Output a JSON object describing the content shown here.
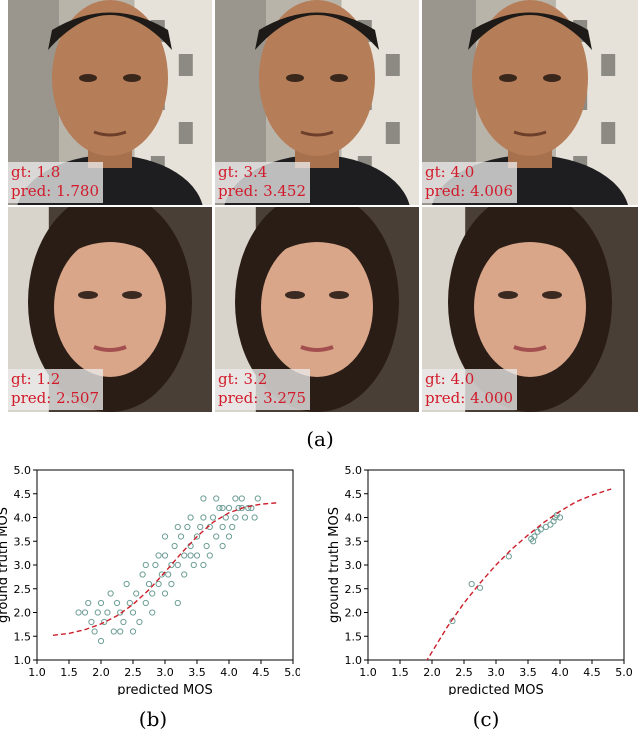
{
  "panel_a": {
    "caption": "(a)",
    "tiles": [
      {
        "gt": "gt: 1.8",
        "pred": "pred: 1.780",
        "subject": "man"
      },
      {
        "gt": "gt: 3.4",
        "pred": "pred: 3.452",
        "subject": "man"
      },
      {
        "gt": "gt: 4.0",
        "pred": "pred: 4.006",
        "subject": "man"
      },
      {
        "gt": "gt: 1.2",
        "pred": "pred: 2.507",
        "subject": "woman"
      },
      {
        "gt": "gt: 3.2",
        "pred": "pred: 3.275",
        "subject": "woman"
      },
      {
        "gt": "gt: 4.0",
        "pred": "pred: 4.000",
        "subject": "woman"
      }
    ]
  },
  "captions": {
    "b": "(b)",
    "c": "(c)"
  },
  "colors": {
    "points": "#6e9e96",
    "fit": "#cc1f2b",
    "label": "#d21a2a"
  },
  "chart_data": [
    {
      "type": "scatter",
      "xlabel": "predicted MOS",
      "ylabel": "ground truth MOS",
      "xlim": [
        1.0,
        5.0
      ],
      "ylim": [
        1.0,
        5.0
      ],
      "xticks": [
        "1.0",
        "1.5",
        "2.0",
        "2.5",
        "3.0",
        "3.5",
        "4.0",
        "4.5",
        "5.0"
      ],
      "yticks": [
        "1.0",
        "1.5",
        "2.0",
        "2.5",
        "3.0",
        "3.5",
        "4.0",
        "4.5",
        "5.0"
      ],
      "grid": false,
      "points": [
        [
          1.65,
          2.0
        ],
        [
          1.75,
          2.0
        ],
        [
          1.8,
          2.2
        ],
        [
          1.85,
          1.8
        ],
        [
          1.9,
          1.6
        ],
        [
          1.95,
          2.0
        ],
        [
          2.0,
          2.2
        ],
        [
          2.05,
          1.8
        ],
        [
          2.1,
          2.0
        ],
        [
          2.15,
          2.4
        ],
        [
          2.2,
          1.6
        ],
        [
          2.25,
          2.2
        ],
        [
          2.3,
          2.0
        ],
        [
          2.35,
          1.8
        ],
        [
          2.4,
          2.6
        ],
        [
          2.45,
          2.2
        ],
        [
          2.5,
          2.0
        ],
        [
          2.55,
          2.4
        ],
        [
          2.6,
          1.8
        ],
        [
          2.65,
          2.8
        ],
        [
          2.7,
          2.2
        ],
        [
          2.75,
          2.6
        ],
        [
          2.8,
          2.4
        ],
        [
          2.85,
          3.0
        ],
        [
          2.9,
          2.6
        ],
        [
          2.95,
          2.8
        ],
        [
          3.0,
          3.2
        ],
        [
          3.05,
          2.8
        ],
        [
          3.1,
          3.0
        ],
        [
          3.15,
          3.4
        ],
        [
          3.2,
          3.0
        ],
        [
          3.25,
          3.6
        ],
        [
          3.3,
          3.2
        ],
        [
          3.35,
          3.8
        ],
        [
          3.4,
          3.4
        ],
        [
          3.45,
          3.0
        ],
        [
          3.5,
          3.6
        ],
        [
          3.55,
          3.8
        ],
        [
          3.6,
          4.0
        ],
        [
          3.65,
          3.4
        ],
        [
          3.7,
          3.8
        ],
        [
          3.75,
          4.0
        ],
        [
          3.8,
          3.6
        ],
        [
          3.85,
          4.2
        ],
        [
          3.9,
          3.8
        ],
        [
          3.95,
          4.0
        ],
        [
          4.0,
          4.2
        ],
        [
          4.05,
          3.8
        ],
        [
          4.1,
          4.0
        ],
        [
          4.15,
          4.2
        ],
        [
          4.2,
          4.4
        ],
        [
          4.25,
          4.0
        ],
        [
          4.3,
          4.2
        ],
        [
          4.35,
          4.2
        ],
        [
          4.4,
          4.0
        ],
        [
          4.45,
          4.4
        ],
        [
          3.6,
          4.4
        ],
        [
          3.2,
          3.8
        ],
        [
          2.9,
          3.2
        ],
        [
          3.0,
          2.4
        ],
        [
          3.3,
          2.8
        ],
        [
          3.5,
          3.2
        ],
        [
          3.7,
          3.2
        ],
        [
          3.9,
          3.4
        ],
        [
          4.0,
          3.6
        ],
        [
          3.1,
          2.6
        ],
        [
          2.7,
          3.0
        ],
        [
          3.4,
          4.0
        ],
        [
          3.8,
          4.4
        ],
        [
          4.1,
          4.4
        ],
        [
          2.5,
          1.6
        ],
        [
          2.8,
          2.0
        ],
        [
          3.2,
          2.2
        ],
        [
          2.0,
          1.4
        ],
        [
          2.3,
          1.6
        ],
        [
          3.0,
          3.6
        ],
        [
          3.4,
          3.2
        ],
        [
          3.6,
          3.0
        ],
        [
          3.9,
          4.2
        ],
        [
          4.2,
          4.2
        ]
      ],
      "fit_curve": [
        [
          1.25,
          1.52
        ],
        [
          1.5,
          1.56
        ],
        [
          1.75,
          1.64
        ],
        [
          2.0,
          1.76
        ],
        [
          2.25,
          1.93
        ],
        [
          2.5,
          2.17
        ],
        [
          2.75,
          2.48
        ],
        [
          3.0,
          2.85
        ],
        [
          3.25,
          3.24
        ],
        [
          3.5,
          3.6
        ],
        [
          3.75,
          3.9
        ],
        [
          4.0,
          4.1
        ],
        [
          4.25,
          4.22
        ],
        [
          4.5,
          4.28
        ],
        [
          4.75,
          4.31
        ]
      ]
    },
    {
      "type": "scatter",
      "xlabel": "predicted MOS",
      "ylabel": "ground truth MOS",
      "xlim": [
        1.0,
        5.0
      ],
      "ylim": [
        1.0,
        5.0
      ],
      "xticks": [
        "1.0",
        "1.5",
        "2.0",
        "2.5",
        "3.0",
        "3.5",
        "4.0",
        "4.5",
        "5.0"
      ],
      "yticks": [
        "1.0",
        "1.5",
        "2.0",
        "2.5",
        "3.0",
        "3.5",
        "4.0",
        "4.5",
        "5.0"
      ],
      "grid": false,
      "points": [
        [
          2.32,
          1.82
        ],
        [
          2.62,
          2.6
        ],
        [
          2.75,
          2.52
        ],
        [
          3.2,
          3.18
        ],
        [
          3.55,
          3.55
        ],
        [
          3.58,
          3.5
        ],
        [
          3.6,
          3.6
        ],
        [
          3.65,
          3.7
        ],
        [
          3.7,
          3.75
        ],
        [
          3.78,
          3.8
        ],
        [
          3.85,
          3.85
        ],
        [
          3.9,
          3.92
        ],
        [
          3.92,
          4.0
        ],
        [
          3.95,
          4.05
        ],
        [
          4.0,
          4.0
        ]
      ],
      "fit_curve": [
        [
          1.9,
          0.95
        ],
        [
          2.25,
          1.72
        ],
        [
          2.5,
          2.2
        ],
        [
          2.75,
          2.62
        ],
        [
          3.0,
          3.0
        ],
        [
          3.25,
          3.34
        ],
        [
          3.5,
          3.63
        ],
        [
          3.75,
          3.9
        ],
        [
          4.0,
          4.13
        ],
        [
          4.25,
          4.33
        ],
        [
          4.5,
          4.47
        ],
        [
          4.8,
          4.6
        ]
      ]
    }
  ]
}
